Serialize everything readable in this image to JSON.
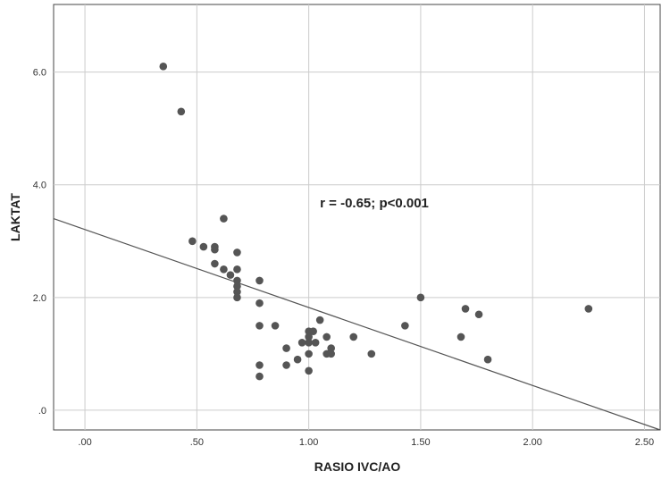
{
  "chart_data": {
    "type": "scatter",
    "xlabel": "RASIO IVC/AO",
    "ylabel": "LAKTAT",
    "xlim": [
      -0.14,
      2.57
    ],
    "ylim": [
      -0.35,
      7.2
    ],
    "x_ticks": [
      0,
      0.5,
      1.0,
      1.5,
      2.0,
      2.5
    ],
    "x_tick_labels": [
      ".00",
      ".50",
      "1.00",
      "1.50",
      "2.00",
      "2.50"
    ],
    "y_ticks": [
      0,
      2,
      4,
      6
    ],
    "y_tick_labels": [
      ".0",
      "2.0",
      "4.0",
      "6.0"
    ],
    "grid": true,
    "annotation": {
      "text": "r = -0.65; p<0.001",
      "x": 1.05,
      "y": 3.6
    },
    "fit_line": {
      "x": [
        -0.14,
        2.57
      ],
      "y": [
        3.4,
        -0.35
      ]
    },
    "point_color": "#555555",
    "line_color": "#555555",
    "points": [
      {
        "x": 0.35,
        "y": 6.1
      },
      {
        "x": 0.43,
        "y": 5.3
      },
      {
        "x": 0.48,
        "y": 3.0
      },
      {
        "x": 0.53,
        "y": 2.9
      },
      {
        "x": 0.58,
        "y": 2.6
      },
      {
        "x": 0.58,
        "y": 2.85
      },
      {
        "x": 0.58,
        "y": 2.9
      },
      {
        "x": 0.62,
        "y": 3.4
      },
      {
        "x": 0.62,
        "y": 2.5
      },
      {
        "x": 0.65,
        "y": 2.4
      },
      {
        "x": 0.68,
        "y": 2.8
      },
      {
        "x": 0.68,
        "y": 2.5
      },
      {
        "x": 0.68,
        "y": 2.3
      },
      {
        "x": 0.68,
        "y": 2.2
      },
      {
        "x": 0.68,
        "y": 2.1
      },
      {
        "x": 0.68,
        "y": 2.0
      },
      {
        "x": 0.78,
        "y": 2.3
      },
      {
        "x": 0.78,
        "y": 1.9
      },
      {
        "x": 0.78,
        "y": 1.5
      },
      {
        "x": 0.78,
        "y": 0.8
      },
      {
        "x": 0.78,
        "y": 0.6
      },
      {
        "x": 0.85,
        "y": 1.5
      },
      {
        "x": 0.9,
        "y": 1.1
      },
      {
        "x": 0.9,
        "y": 0.8
      },
      {
        "x": 0.95,
        "y": 0.9
      },
      {
        "x": 0.97,
        "y": 1.2
      },
      {
        "x": 1.0,
        "y": 1.4
      },
      {
        "x": 1.0,
        "y": 1.3
      },
      {
        "x": 1.0,
        "y": 1.2
      },
      {
        "x": 1.0,
        "y": 1.0
      },
      {
        "x": 1.0,
        "y": 0.7
      },
      {
        "x": 1.02,
        "y": 1.4
      },
      {
        "x": 1.03,
        "y": 1.2
      },
      {
        "x": 1.05,
        "y": 1.6
      },
      {
        "x": 1.08,
        "y": 1.3
      },
      {
        "x": 1.08,
        "y": 1.0
      },
      {
        "x": 1.1,
        "y": 1.1
      },
      {
        "x": 1.1,
        "y": 1.0
      },
      {
        "x": 1.2,
        "y": 1.3
      },
      {
        "x": 1.28,
        "y": 1.0
      },
      {
        "x": 1.43,
        "y": 1.5
      },
      {
        "x": 1.5,
        "y": 2.0
      },
      {
        "x": 1.68,
        "y": 1.3
      },
      {
        "x": 1.7,
        "y": 1.8
      },
      {
        "x": 1.76,
        "y": 1.7
      },
      {
        "x": 1.8,
        "y": 0.9
      },
      {
        "x": 2.25,
        "y": 1.8
      }
    ]
  }
}
